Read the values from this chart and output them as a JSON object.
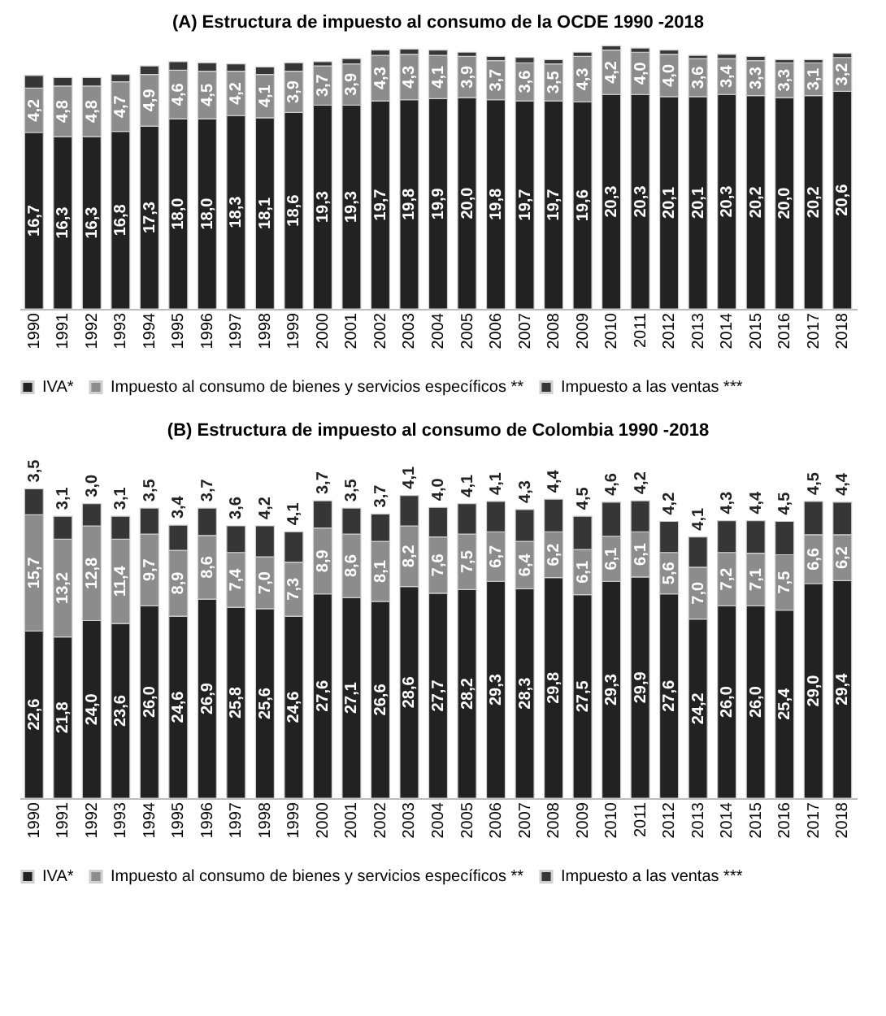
{
  "chart_data": [
    {
      "type": "bar",
      "title": "(A)  Estructura de impuesto al consumo de la OCDE 1990 -2018",
      "stacked": true,
      "legend": "bottom",
      "grid": false,
      "categories": [
        "1990",
        "1991",
        "1992",
        "1993",
        "1994",
        "1995",
        "1996",
        "1997",
        "1998",
        "1999",
        "2000",
        "2001",
        "2002",
        "2003",
        "2004",
        "2005",
        "2006",
        "2007",
        "2008",
        "2009",
        "2010",
        "2011",
        "2012",
        "2013",
        "2014",
        "2015",
        "2016",
        "2017",
        "2018"
      ],
      "series": [
        {
          "name": "IVA*",
          "color": "#222222",
          "values": [
            16.7,
            16.3,
            16.3,
            16.8,
            17.3,
            18.0,
            18.0,
            18.3,
            18.1,
            18.6,
            19.3,
            19.3,
            19.7,
            19.8,
            19.9,
            20.0,
            19.8,
            19.7,
            19.7,
            19.6,
            20.3,
            20.3,
            20.1,
            20.1,
            20.3,
            20.2,
            20.0,
            20.2,
            20.6
          ],
          "value_labels": [
            "16,7",
            "16,3",
            "16,3",
            "16,8",
            "17,3",
            "18,0",
            "18,0",
            "18,3",
            "18,1",
            "18,6",
            "19,3",
            "19,3",
            "19,7",
            "19,8",
            "19,9",
            "20,0",
            "19,8",
            "19,7",
            "19,7",
            "19,6",
            "20,3",
            "20,3",
            "20,1",
            "20,1",
            "20,3",
            "20,2",
            "20,0",
            "20,2",
            "20,6"
          ]
        },
        {
          "name": "Impuesto al consumo de bienes y servicios específicos **",
          "color": "#8c8c8c",
          "values": [
            4.2,
            4.8,
            4.8,
            4.7,
            4.9,
            4.6,
            4.5,
            4.2,
            4.1,
            3.9,
            3.7,
            3.9,
            4.3,
            4.3,
            4.1,
            3.9,
            3.7,
            3.6,
            3.5,
            4.3,
            4.2,
            4.0,
            4.0,
            3.6,
            3.4,
            3.3,
            3.3,
            3.1,
            3.2
          ],
          "value_labels": [
            "4,2",
            "4,8",
            "4,8",
            "4,7",
            "4,9",
            "4,6",
            "4,5",
            "4,2",
            "4,1",
            "3,9",
            "3,7",
            "3,9",
            "4,3",
            "4,3",
            "4,1",
            "3,9",
            "3,7",
            "3,6",
            "3,5",
            "4,3",
            "4,2",
            "4,0",
            "4,0",
            "3,6",
            "3,4",
            "3,3",
            "3,3",
            "3,1",
            "3,2"
          ]
        },
        {
          "name": "Impuesto a las ventas ***",
          "color": "#363636",
          "values": [
            1.2,
            0.8,
            0.8,
            0.7,
            0.8,
            0.8,
            0.8,
            0.7,
            0.7,
            0.8,
            0.4,
            0.5,
            0.5,
            0.5,
            0.5,
            0.4,
            0.4,
            0.5,
            0.4,
            0.4,
            0.4,
            0.4,
            0.4,
            0.3,
            0.4,
            0.4,
            0.3,
            0.3,
            0.4
          ]
        }
      ]
    },
    {
      "type": "bar",
      "title": "(B)  Estructura de impuesto al consumo de Colombia 1990 -2018",
      "stacked": true,
      "legend": "bottom",
      "grid": false,
      "categories": [
        "1990",
        "1991",
        "1992",
        "1993",
        "1994",
        "1995",
        "1996",
        "1997",
        "1998",
        "1999",
        "2000",
        "2001",
        "2002",
        "2003",
        "2004",
        "2005",
        "2006",
        "2007",
        "2008",
        "2009",
        "2010",
        "2011",
        "2012",
        "2013",
        "2014",
        "2015",
        "2016",
        "2017",
        "2018"
      ],
      "series": [
        {
          "name": "IVA*",
          "color": "#222222",
          "values": [
            22.6,
            21.8,
            24.0,
            23.6,
            26.0,
            24.6,
            26.9,
            25.8,
            25.6,
            24.6,
            27.6,
            27.1,
            26.6,
            28.6,
            27.7,
            28.2,
            29.3,
            28.3,
            29.8,
            27.5,
            29.3,
            29.9,
            27.6,
            24.2,
            26.0,
            26.0,
            25.4,
            29.0,
            29.4
          ],
          "value_labels": [
            "22,6",
            "21,8",
            "24,0",
            "23,6",
            "26,0",
            "24,6",
            "26,9",
            "25,8",
            "25,6",
            "24,6",
            "27,6",
            "27,1",
            "26,6",
            "28,6",
            "27,7",
            "28,2",
            "29,3",
            "28,3",
            "29,8",
            "27,5",
            "29,3",
            "29,9",
            "27,6",
            "24,2",
            "26,0",
            "26,0",
            "25,4",
            "29,0",
            "29,4"
          ]
        },
        {
          "name": "Impuesto al consumo de bienes y servicios específicos **",
          "color": "#8c8c8c",
          "values": [
            15.7,
            13.2,
            12.8,
            11.4,
            9.7,
            8.9,
            8.6,
            7.4,
            7.0,
            7.3,
            8.9,
            8.6,
            8.1,
            8.2,
            7.6,
            7.5,
            6.7,
            6.4,
            6.2,
            6.1,
            6.1,
            6.1,
            5.6,
            7.0,
            7.2,
            7.1,
            7.5,
            6.6,
            6.2
          ],
          "value_labels": [
            "15,7",
            "13,2",
            "12,8",
            "11,4",
            "9,7",
            "8,9",
            "8,6",
            "7,4",
            "7,0",
            "7,3",
            "8,9",
            "8,6",
            "8,1",
            "8,2",
            "7,6",
            "7,5",
            "6,7",
            "6,4",
            "6,2",
            "6,1",
            "6,1",
            "6,1",
            "5,6",
            "7,0",
            "7,2",
            "7,1",
            "7,5",
            "6,6",
            "6,2"
          ]
        },
        {
          "name": "Impuesto a las ventas ***",
          "color": "#363636",
          "values": [
            3.5,
            3.1,
            3.0,
            3.1,
            3.5,
            3.4,
            3.7,
            3.6,
            4.2,
            4.1,
            3.7,
            3.5,
            3.7,
            4.1,
            4.0,
            4.1,
            4.1,
            4.3,
            4.4,
            4.5,
            4.6,
            4.2,
            4.2,
            4.1,
            4.3,
            4.4,
            4.5,
            4.5,
            4.4
          ],
          "value_labels": [
            "3,5",
            "3,1",
            "3,0",
            "3,1",
            "3,5",
            "3,4",
            "3,7",
            "3,6",
            "4,2",
            "4,1",
            "3,7",
            "3,5",
            "3,7",
            "4,1",
            "4,0",
            "4,1",
            "4,1",
            "4,3",
            "4,4",
            "4,5",
            "4,6",
            "4,2",
            "4,2",
            "4,1",
            "4,3",
            "4,4",
            "4,5",
            "4,5",
            "4,4"
          ]
        }
      ]
    }
  ]
}
